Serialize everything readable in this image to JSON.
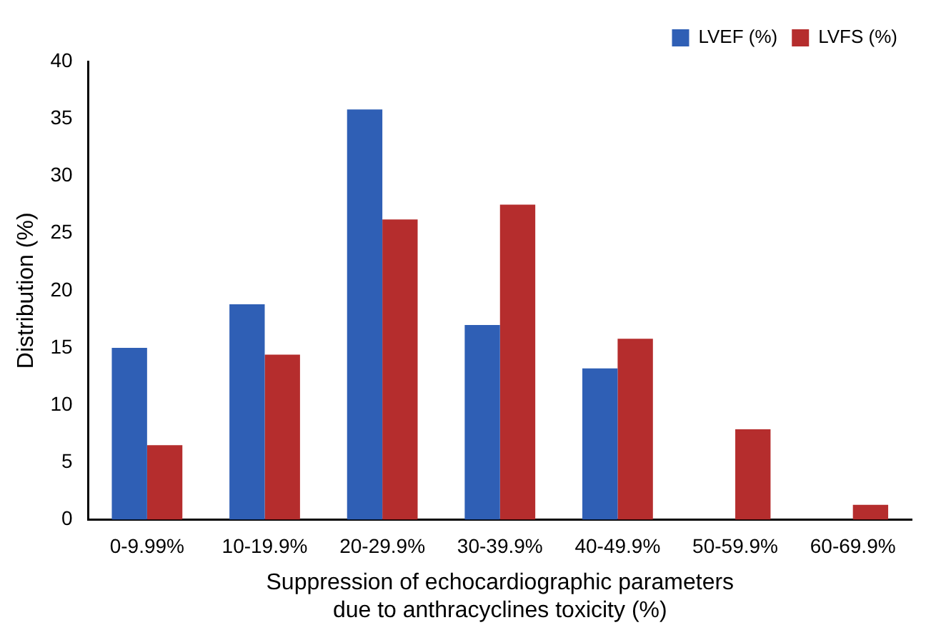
{
  "chart_data": {
    "type": "bar",
    "xlabel": "Suppression of echocardiographic parameters due to anthracyclines toxicity (%)",
    "ylabel": "Distribution (%)",
    "categories": [
      "0-9.99%",
      "10-19.9%",
      "20-29.9%",
      "30-39.9%",
      "40-49.9%",
      "50-59.9%",
      "60-69.9%"
    ],
    "series": [
      {
        "name": "LVEF (%)",
        "color": "#2f5fb5",
        "values": [
          15,
          18.8,
          35.8,
          17,
          13.2,
          0,
          0
        ]
      },
      {
        "name": "LVFS (%)",
        "color": "#b52d2d",
        "values": [
          6.5,
          14.4,
          26.2,
          27.5,
          15.8,
          7.9,
          1.3
        ]
      }
    ],
    "ylim": [
      0,
      40
    ],
    "yticks": [
      0,
      5,
      10,
      15,
      20,
      25,
      30,
      35,
      40
    ],
    "grid": false,
    "legend": "top right"
  }
}
